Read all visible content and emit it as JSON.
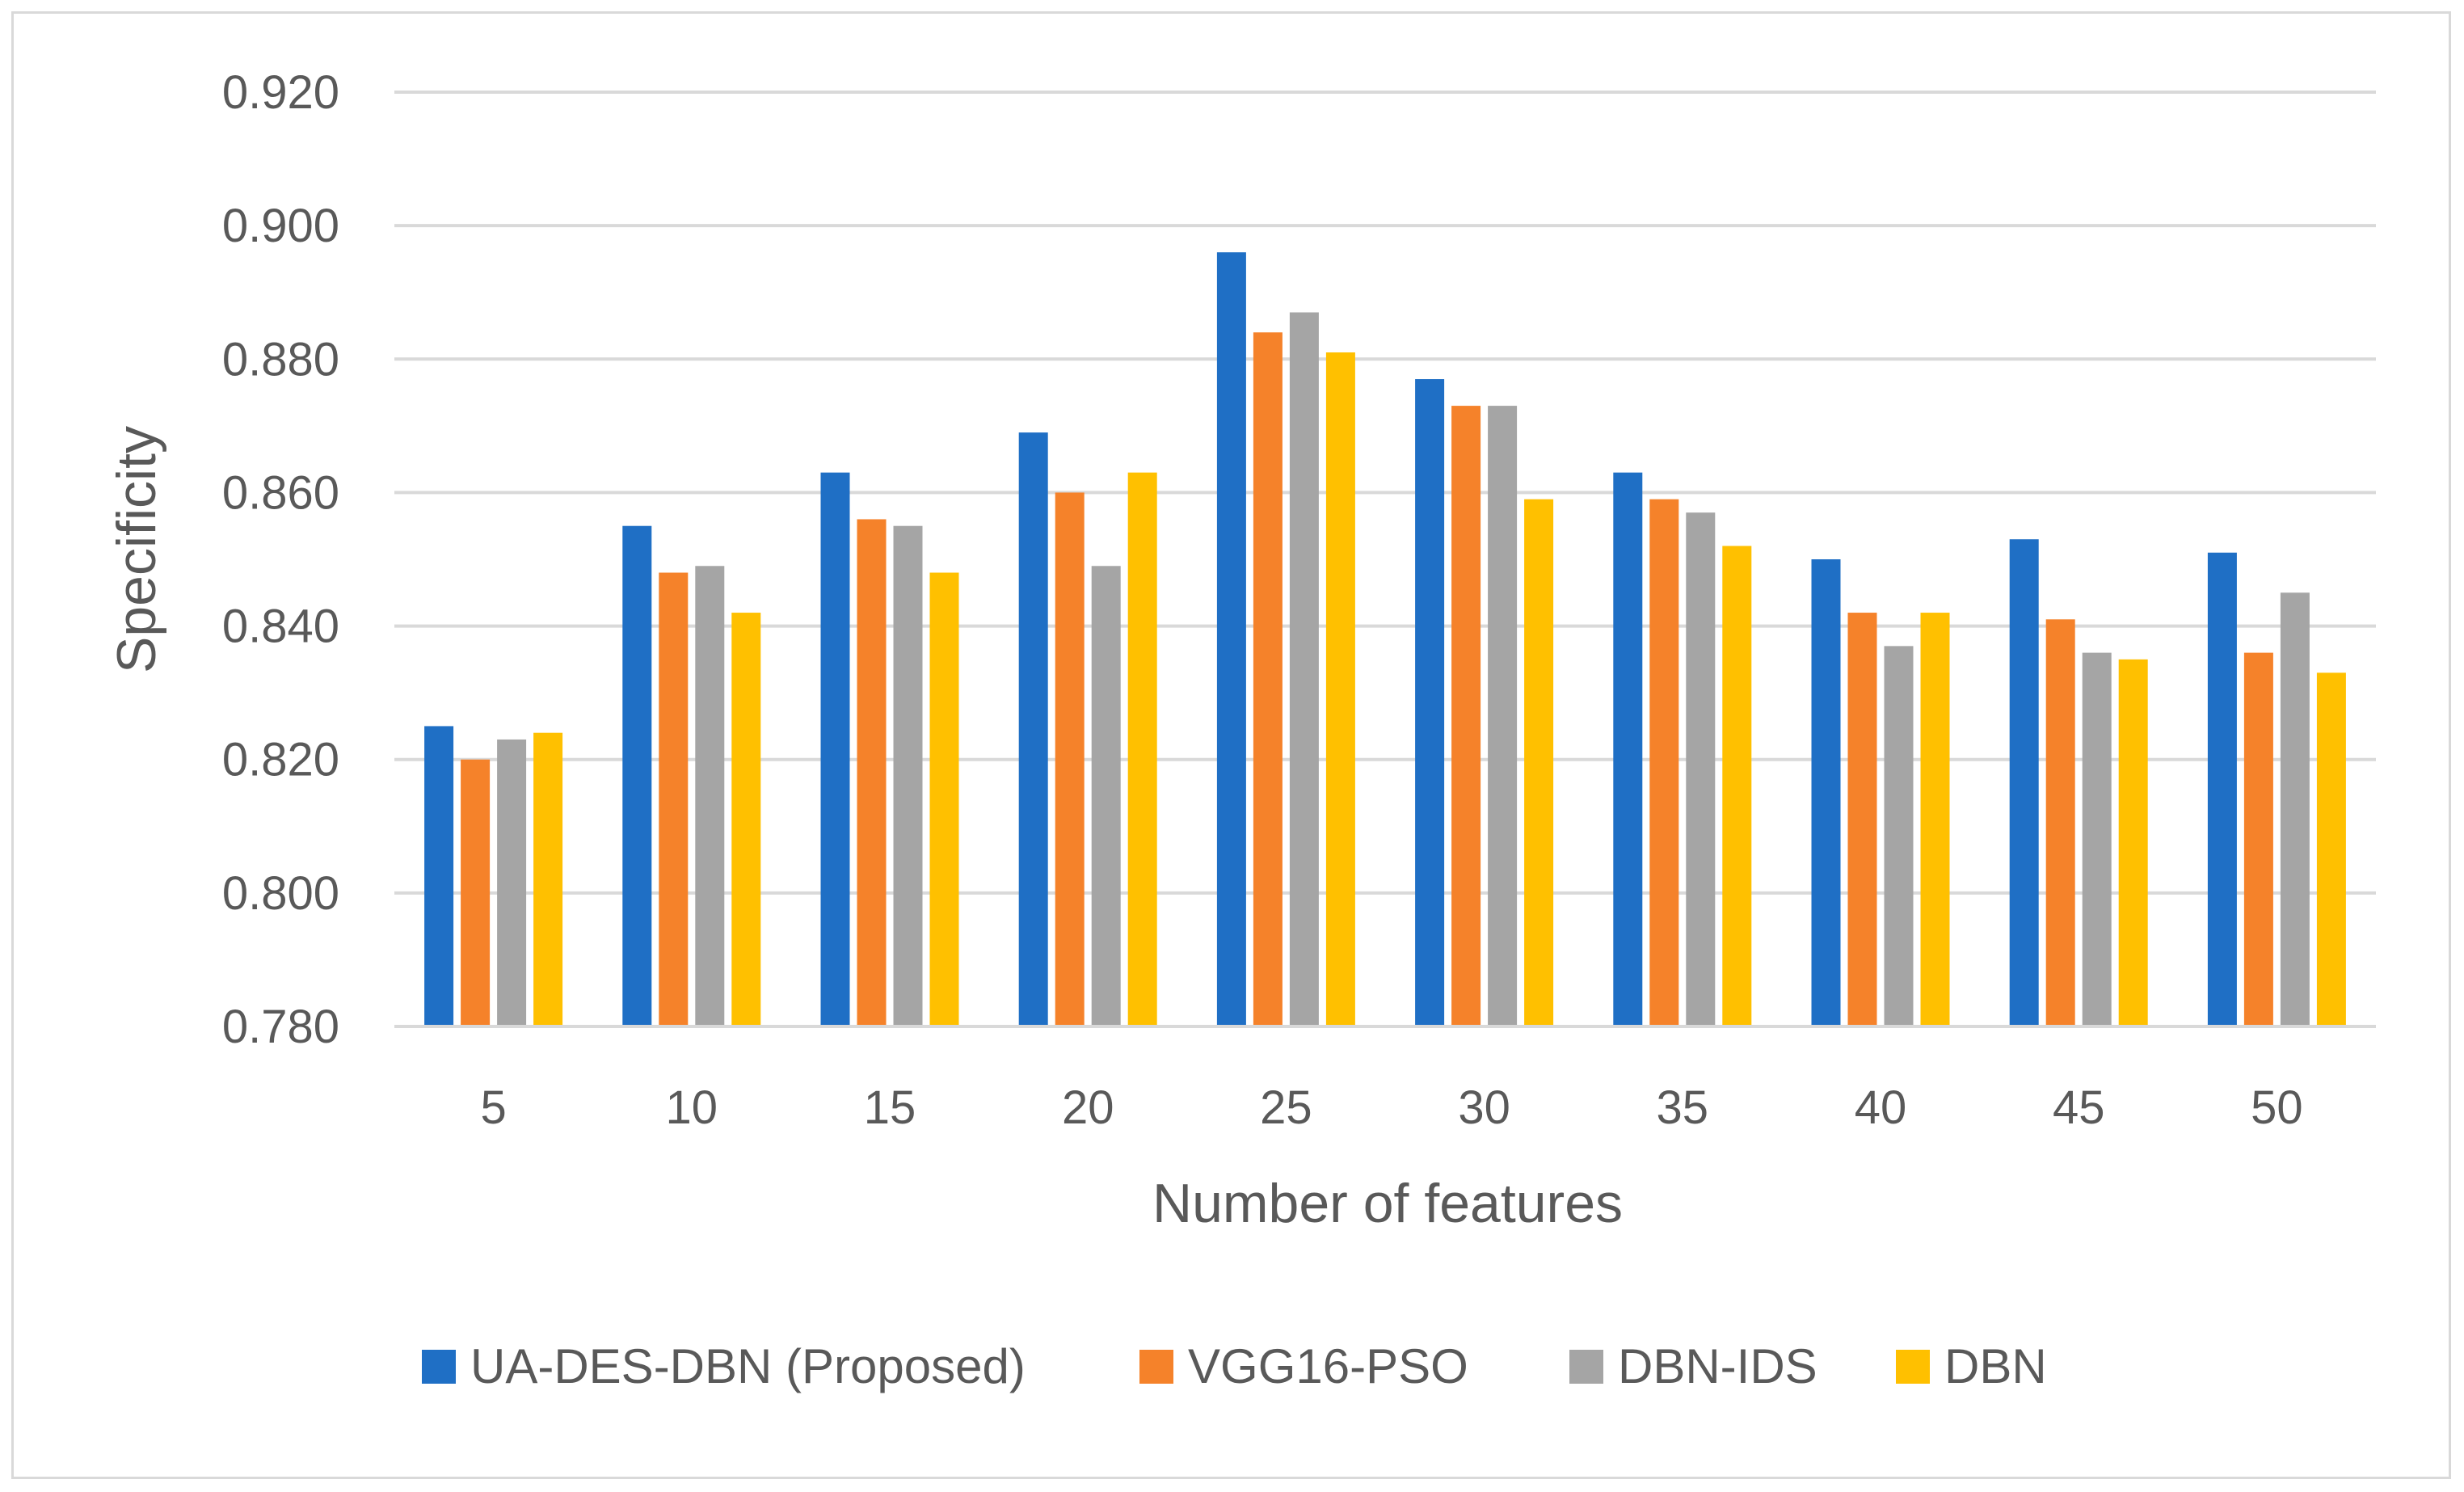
{
  "chart_data": {
    "type": "bar",
    "title": "",
    "xlabel": "Number of features",
    "ylabel": "Specificity",
    "ylim": [
      0.78,
      0.92
    ],
    "ytick_step": 0.02,
    "yticks": [
      "0.780",
      "0.800",
      "0.820",
      "0.840",
      "0.860",
      "0.880",
      "0.900",
      "0.920"
    ],
    "grid": true,
    "legend_position": "bottom",
    "categories": [
      "5",
      "10",
      "15",
      "20",
      "25",
      "30",
      "35",
      "40",
      "45",
      "50"
    ],
    "series": [
      {
        "name": "UA-DES-DBN (Proposed)",
        "color": "#1f6fc5",
        "values": [
          0.825,
          0.855,
          0.863,
          0.869,
          0.896,
          0.877,
          0.863,
          0.85,
          0.853,
          0.851
        ]
      },
      {
        "name": "VGG16-PSO",
        "color": "#f5822a",
        "values": [
          0.82,
          0.848,
          0.856,
          0.86,
          0.884,
          0.873,
          0.859,
          0.842,
          0.841,
          0.836
        ]
      },
      {
        "name": "DBN-IDS",
        "color": "#a5a5a5",
        "values": [
          0.823,
          0.849,
          0.855,
          0.849,
          0.887,
          0.873,
          0.857,
          0.837,
          0.836,
          0.845
        ]
      },
      {
        "name": "DBN",
        "color": "#ffc000",
        "values": [
          0.824,
          0.842,
          0.848,
          0.863,
          0.881,
          0.859,
          0.852,
          0.842,
          0.835,
          0.833
        ]
      }
    ]
  }
}
